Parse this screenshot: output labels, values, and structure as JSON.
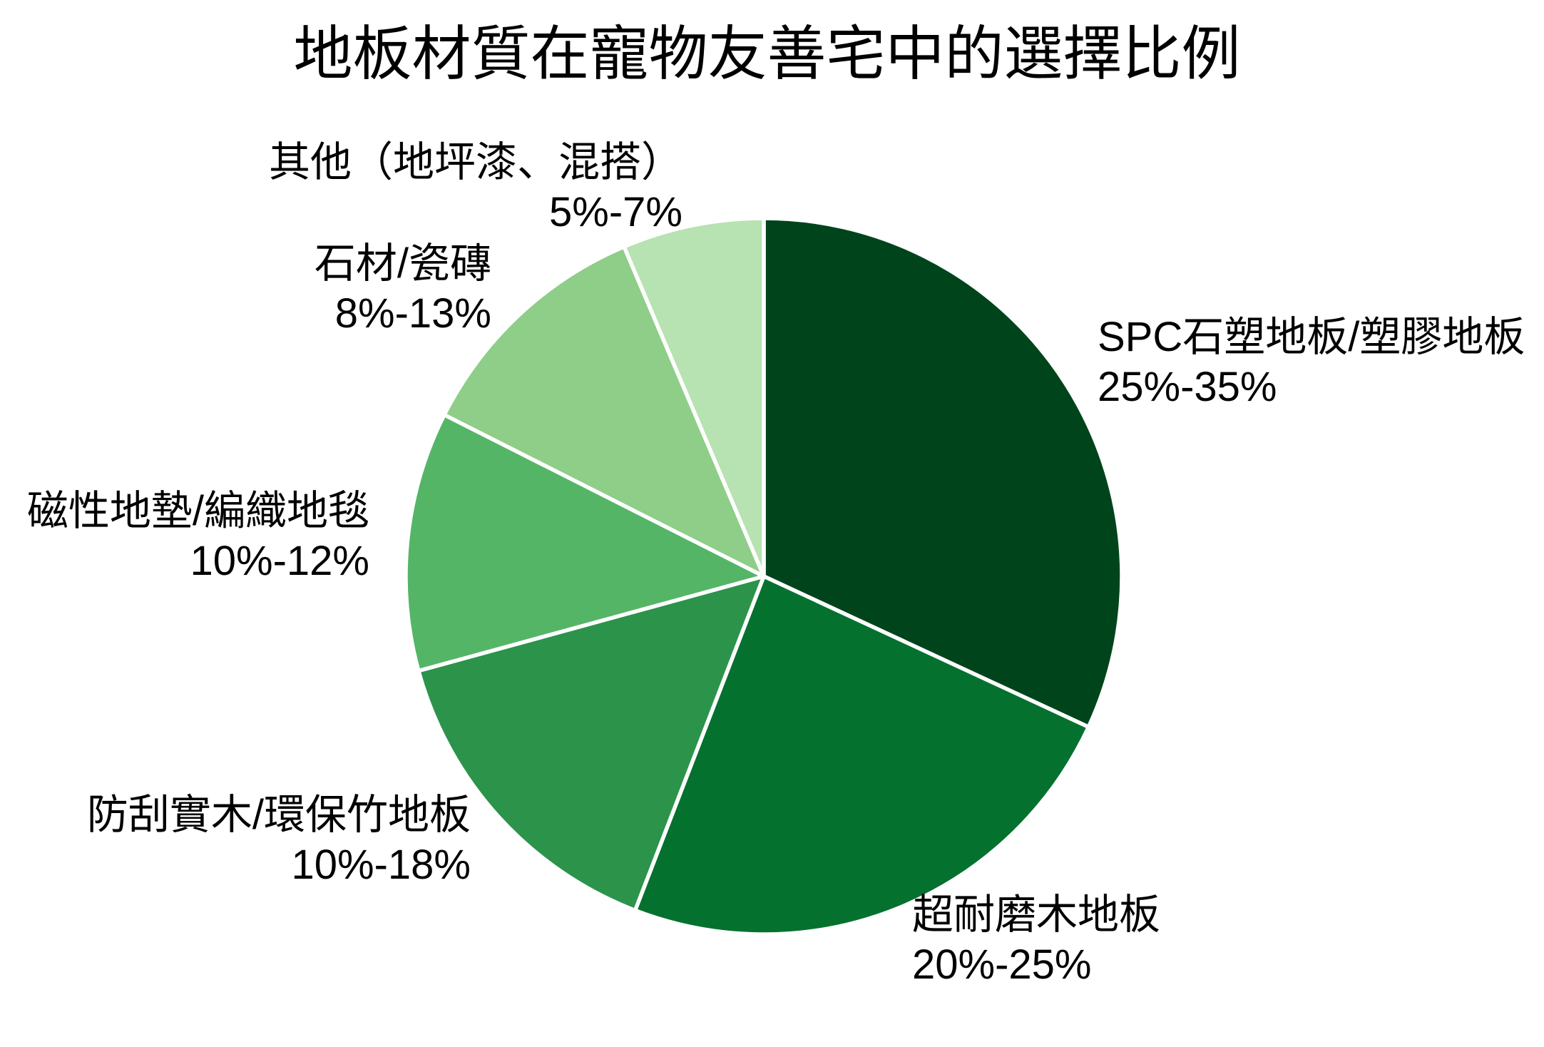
{
  "chart_data": {
    "type": "pie",
    "title": "地板材質在寵物友善宅中的選擇比例",
    "start_angle": 90,
    "direction": "clockwise",
    "edgecolor": "#ffffff",
    "legend": "none",
    "label_position": "outside",
    "categories": [
      "SPC石塑地板/塑膠地板",
      "超耐磨木地板",
      "防刮實木/環保竹地板",
      "磁性地墊/編織地毯",
      "石材/瓷磚",
      "其他（地坪漆、混搭）"
    ],
    "values": [
      30,
      22.5,
      14,
      11,
      10.5,
      6
    ],
    "slices": [
      {
        "label": "SPC石塑地板/塑膠地板",
        "range": "25%-35%",
        "value": 30,
        "color": "#00441b"
      },
      {
        "label": "超耐磨木地板",
        "range": "20%-25%",
        "value": 22.5,
        "color": "#05712f"
      },
      {
        "label": "防刮實木/環保竹地板",
        "range": "10%-18%",
        "value": 14,
        "color": "#2c934b"
      },
      {
        "label": "磁性地墊/編織地毯",
        "range": "10%-12%",
        "value": 11,
        "color": "#55b567"
      },
      {
        "label": "石材/瓷磚",
        "range": "8%-13%",
        "value": 10.5,
        "color": "#8ece88"
      },
      {
        "label": "其他（地坪漆、混搭）",
        "range": "5%-7%",
        "value": 6,
        "color": "#b7e2b1"
      }
    ]
  }
}
